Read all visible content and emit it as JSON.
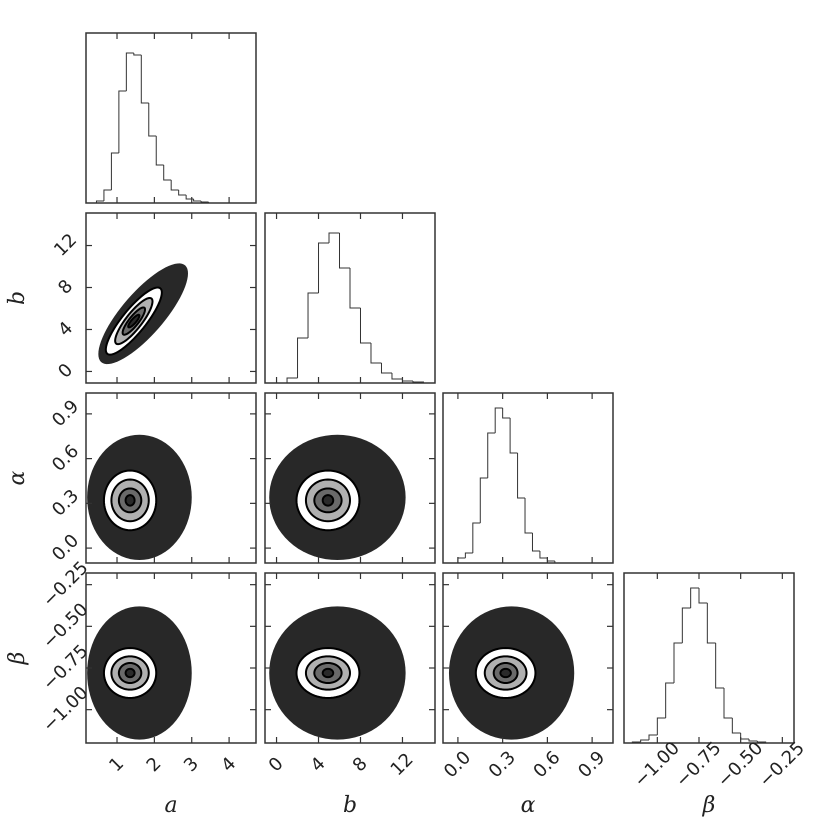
{
  "chart_data": {
    "type": "corner",
    "line_color": "#333333",
    "cloud_color": "#1c1c1c",
    "contour_fills": [
      "#ffffff",
      "#b0b0b0",
      "#6a6a6a",
      "#2a2a2a"
    ],
    "axes": [
      {
        "label": "a",
        "lim": [
          0.17,
          4.72
        ],
        "ticks": [
          1,
          2,
          3,
          4
        ]
      },
      {
        "label": "b",
        "lim": [
          -1.1,
          15.1
        ],
        "ticks": [
          0,
          4,
          8,
          12
        ]
      },
      {
        "label": "α",
        "lim": [
          -0.1,
          1.04
        ],
        "ticks": [
          {
            "value": 0,
            "label": "0.0"
          },
          {
            "value": 0.3,
            "label": "0.3"
          },
          {
            "value": 0.6,
            "label": "0.6"
          },
          {
            "value": 0.9,
            "label": "0.9"
          }
        ]
      },
      {
        "label": "β",
        "lim": [
          -1.2,
          -0.18
        ],
        "ticks": [
          {
            "value": -1,
            "label": "−1.00"
          },
          {
            "value": -0.75,
            "label": "−0.75"
          },
          {
            "value": -0.5,
            "label": "−0.50"
          },
          {
            "value": -0.25,
            "label": "−0.25"
          }
        ]
      }
    ],
    "histograms": [
      {
        "ylim": [
          0,
          170
        ],
        "bins": [
          0.45,
          0.65,
          0.85,
          1.05,
          1.25,
          1.45,
          1.65,
          1.85,
          2.05,
          2.25,
          2.45,
          2.65,
          2.85,
          3.05,
          3.25,
          3.45,
          3.65
        ],
        "counts": [
          2,
          13,
          50,
          112,
          150,
          148,
          100,
          67,
          38,
          23,
          13,
          8,
          4,
          2,
          1,
          0
        ]
      },
      {
        "ylim": [
          0,
          170
        ],
        "bins": [
          0,
          1,
          2,
          3,
          4,
          5,
          6,
          7,
          8,
          9,
          10,
          11,
          12,
          13,
          14
        ],
        "counts": [
          0,
          5,
          45,
          90,
          140,
          150,
          115,
          75,
          40,
          20,
          10,
          4,
          2,
          1
        ]
      },
      {
        "ylim": [
          0,
          170
        ],
        "bins": [
          0,
          0.05,
          0.1,
          0.15,
          0.2,
          0.25,
          0.3,
          0.35,
          0.4,
          0.45,
          0.5,
          0.55,
          0.6,
          0.65,
          0.7
        ],
        "counts": [
          5,
          10,
          40,
          85,
          130,
          155,
          145,
          110,
          65,
          30,
          12,
          5,
          2,
          0
        ]
      },
      {
        "ylim": [
          0,
          170
        ],
        "bins": [
          -1.15,
          -1.1,
          -1.05,
          -1.0,
          -0.95,
          -0.9,
          -0.85,
          -0.8,
          -0.75,
          -0.7,
          -0.65,
          -0.6,
          -0.55,
          -0.5,
          -0.45,
          -0.4,
          -0.35
        ],
        "counts": [
          1,
          3,
          8,
          25,
          60,
          100,
          135,
          155,
          140,
          100,
          55,
          25,
          10,
          4,
          2,
          1
        ]
      }
    ],
    "panels": [
      {
        "x": 1.45,
        "y": 4.8,
        "rho": 0.85,
        "cloud": {
          "x": 1.7,
          "y": 5.5,
          "sx": 1.2,
          "sy": 4.8,
          "rho": 0.8
        },
        "contours": [
          {
            "sx": 0.75,
            "sy": 3.2
          },
          {
            "sx": 0.5,
            "sy": 2.2
          },
          {
            "sx": 0.3,
            "sy": 1.3
          },
          {
            "sx": 0.15,
            "sy": 0.6
          }
        ]
      },
      {
        "x": 1.35,
        "y": 0.32,
        "rho": 0,
        "cloud": {
          "x": 1.6,
          "y": 0.34,
          "sx": 1.4,
          "sy": 0.42,
          "rho": 0
        },
        "contours": [
          {
            "sx": 0.7,
            "sy": 0.2
          },
          {
            "sx": 0.5,
            "sy": 0.14
          },
          {
            "sx": 0.3,
            "sy": 0.08
          },
          {
            "sx": 0.12,
            "sy": 0.035
          }
        ]
      },
      {
        "x": 4.9,
        "y": 0.32,
        "rho": 0,
        "cloud": {
          "x": 5.8,
          "y": 0.34,
          "sx": 6.5,
          "sy": 0.42,
          "rho": 0
        },
        "contours": [
          {
            "sx": 3.0,
            "sy": 0.2
          },
          {
            "sx": 2.1,
            "sy": 0.14
          },
          {
            "sx": 1.3,
            "sy": 0.08
          },
          {
            "sx": 0.5,
            "sy": 0.035
          }
        ]
      },
      {
        "x": 1.35,
        "y": -0.78,
        "rho": 0,
        "cloud": {
          "x": 1.6,
          "y": -0.78,
          "sx": 1.4,
          "sy": 0.4,
          "rho": 0
        },
        "contours": [
          {
            "sx": 0.7,
            "sy": 0.15
          },
          {
            "sx": 0.5,
            "sy": 0.1
          },
          {
            "sx": 0.3,
            "sy": 0.06
          },
          {
            "sx": 0.12,
            "sy": 0.025
          }
        ]
      },
      {
        "x": 4.9,
        "y": -0.78,
        "rho": 0,
        "cloud": {
          "x": 5.8,
          "y": -0.78,
          "sx": 6.5,
          "sy": 0.4,
          "rho": 0
        },
        "contours": [
          {
            "sx": 3.0,
            "sy": 0.15
          },
          {
            "sx": 2.1,
            "sy": 0.1
          },
          {
            "sx": 1.3,
            "sy": 0.06
          },
          {
            "sx": 0.5,
            "sy": 0.025
          }
        ]
      },
      {
        "x": 0.32,
        "y": -0.78,
        "rho": 0,
        "cloud": {
          "x": 0.36,
          "y": -0.78,
          "sx": 0.42,
          "sy": 0.4,
          "rho": 0
        },
        "contours": [
          {
            "sx": 0.2,
            "sy": 0.15
          },
          {
            "sx": 0.14,
            "sy": 0.1
          },
          {
            "sx": 0.08,
            "sy": 0.06
          },
          {
            "sx": 0.035,
            "sy": 0.025
          }
        ]
      }
    ]
  }
}
